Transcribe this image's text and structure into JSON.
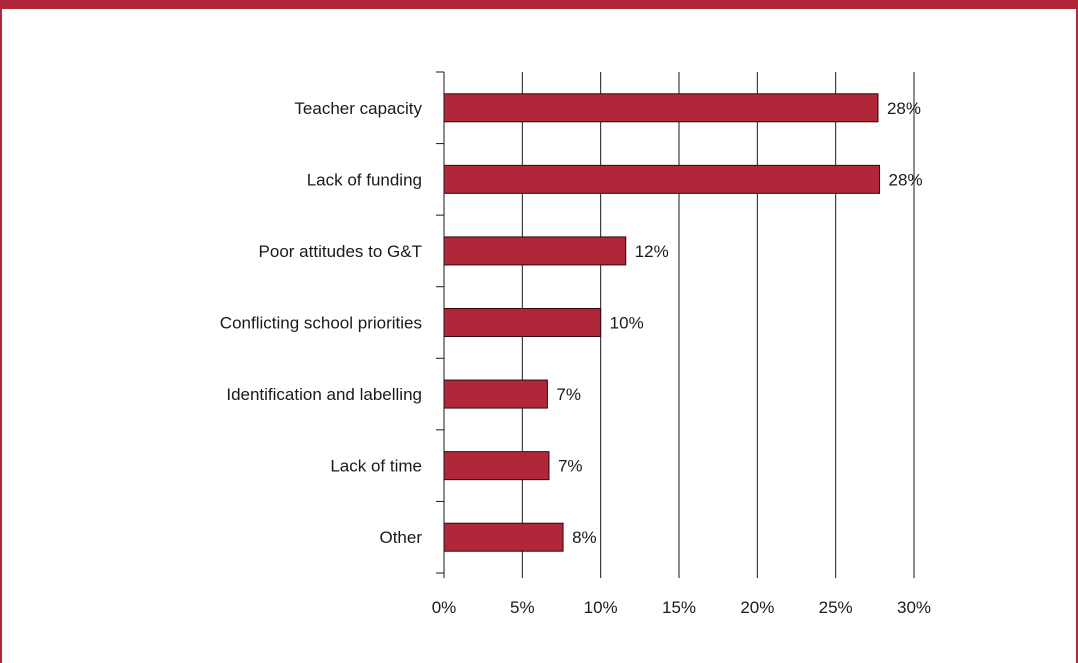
{
  "chart_data": {
    "type": "bar",
    "orientation": "horizontal",
    "categories": [
      "Teacher capacity",
      "Lack of funding",
      "Poor attitudes to G&T",
      "Conflicting school priorities",
      "Identification and labelling",
      "Lack of time",
      "Other"
    ],
    "values": [
      27.7,
      27.8,
      11.6,
      10.0,
      6.6,
      6.7,
      7.6
    ],
    "data_labels": [
      "28%",
      "28%",
      "12%",
      "10%",
      "7%",
      "7%",
      "8%"
    ],
    "xlim": [
      0,
      30
    ],
    "xticks": [
      0,
      5,
      10,
      15,
      20,
      25,
      30
    ],
    "xtick_labels": [
      "0%",
      "5%",
      "10%",
      "15%",
      "20%",
      "25%",
      "30%"
    ],
    "grid": "vertical",
    "title": "",
    "xlabel": "",
    "ylabel": "",
    "bar_color": "#b0273a",
    "frame_color": "#b0273a"
  }
}
